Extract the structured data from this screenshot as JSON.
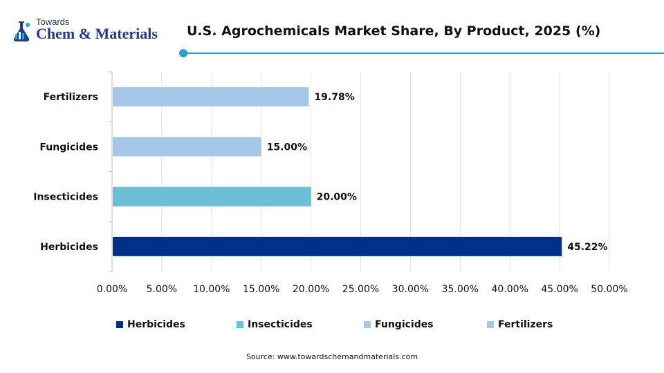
{
  "logo": {
    "line1": "Towards",
    "line2": "Chem & Materials"
  },
  "title": "U.S. Agrochemicals Market Share, By Product, 2025 (%)",
  "source": "Source: www.towardschemandmaterials.com",
  "colors": {
    "Herbicides": "#003087",
    "Insecticides": "#6bbfd9",
    "Fungicides": "#a6c8e8",
    "Fertilizers": "#a6c8e8",
    "accent": "#2a9fd6"
  },
  "chart_data": {
    "type": "bar",
    "orientation": "horizontal",
    "categories": [
      "Fertilizers",
      "Fungicides",
      "Insecticides",
      "Herbicides"
    ],
    "values": [
      19.78,
      15.0,
      20.0,
      45.22
    ],
    "data_labels": [
      "19.78%",
      "15.00%",
      "20.00%",
      "45.22%"
    ],
    "xlim": [
      0,
      50
    ],
    "x_ticks": [
      "0.00%",
      "5.00%",
      "10.00%",
      "15.00%",
      "20.00%",
      "25.00%",
      "30.00%",
      "35.00%",
      "40.00%",
      "45.00%",
      "50.00%"
    ],
    "grid": true,
    "legend_position": "bottom",
    "legend": [
      "Herbicides",
      "Insecticides",
      "Fungicides",
      "Fertilizers"
    ]
  }
}
